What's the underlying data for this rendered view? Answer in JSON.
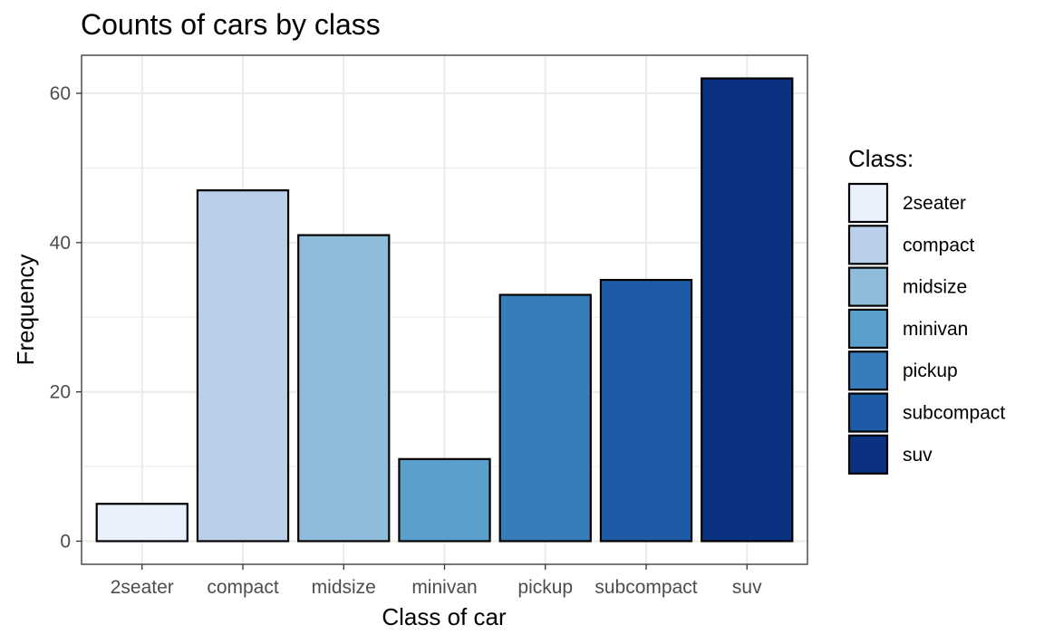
{
  "chart_data": {
    "type": "bar",
    "title": "Counts of cars by class",
    "xlabel": "Class of car",
    "ylabel": "Frequency",
    "categories": [
      "2seater",
      "compact",
      "midsize",
      "minivan",
      "pickup",
      "subcompact",
      "suv"
    ],
    "values": [
      5,
      47,
      41,
      11,
      33,
      35,
      62
    ],
    "ylim": [
      -3.1,
      65.1
    ],
    "yticks": [
      0,
      20,
      40,
      60
    ],
    "grid": true,
    "legend": {
      "title": "Class:",
      "placement": "right",
      "entries": [
        "2seater",
        "compact",
        "midsize",
        "minivan",
        "pickup",
        "subcompact",
        "suv"
      ]
    },
    "colors": [
      "#eaf0fc",
      "#bad0ea",
      "#8ebcda",
      "#5b9fcc",
      "#367dba",
      "#1e5ba6",
      "#0b3280"
    ],
    "bar_outline": "#000000"
  }
}
